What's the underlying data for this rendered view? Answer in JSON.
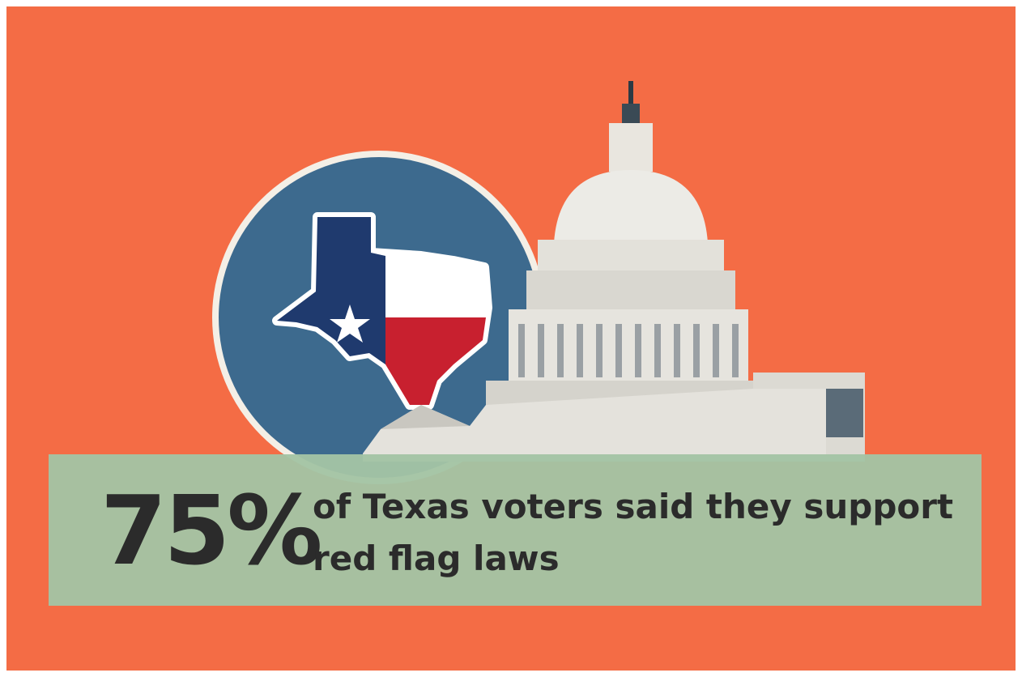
{
  "stat": "75%",
  "caption": [
    "of Texas voters said they support",
    "red flag laws"
  ]
}
